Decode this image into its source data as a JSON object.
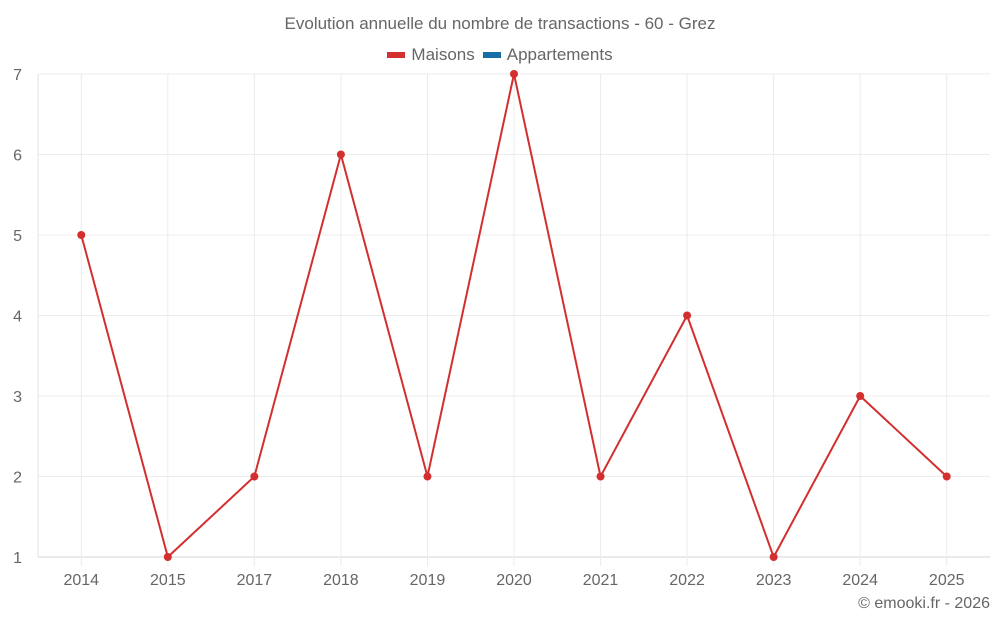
{
  "chart_data": {
    "type": "line",
    "title": "Evolution annuelle du nombre de transactions - 60 - Grez",
    "categories": [
      "2014",
      "2015",
      "2017",
      "2018",
      "2019",
      "2020",
      "2021",
      "2022",
      "2023",
      "2024",
      "2025"
    ],
    "series": [
      {
        "name": "Maisons",
        "color": "#d32f2f",
        "values": [
          5,
          1,
          2,
          6,
          2,
          7,
          2,
          4,
          1,
          3,
          2
        ]
      },
      {
        "name": "Appartements",
        "color": "#1a6ea8",
        "values": []
      }
    ],
    "xlabel": "",
    "ylabel": "",
    "ylim": [
      1,
      7
    ],
    "yticks": [
      1,
      2,
      3,
      4,
      5,
      6,
      7
    ],
    "grid": true,
    "legend_position": "top"
  },
  "legend": [
    {
      "label": "Maisons",
      "color": "#d32f2f"
    },
    {
      "label": "Appartements",
      "color": "#1a6ea8"
    }
  ],
  "credit": "© emooki.fr - 2026"
}
